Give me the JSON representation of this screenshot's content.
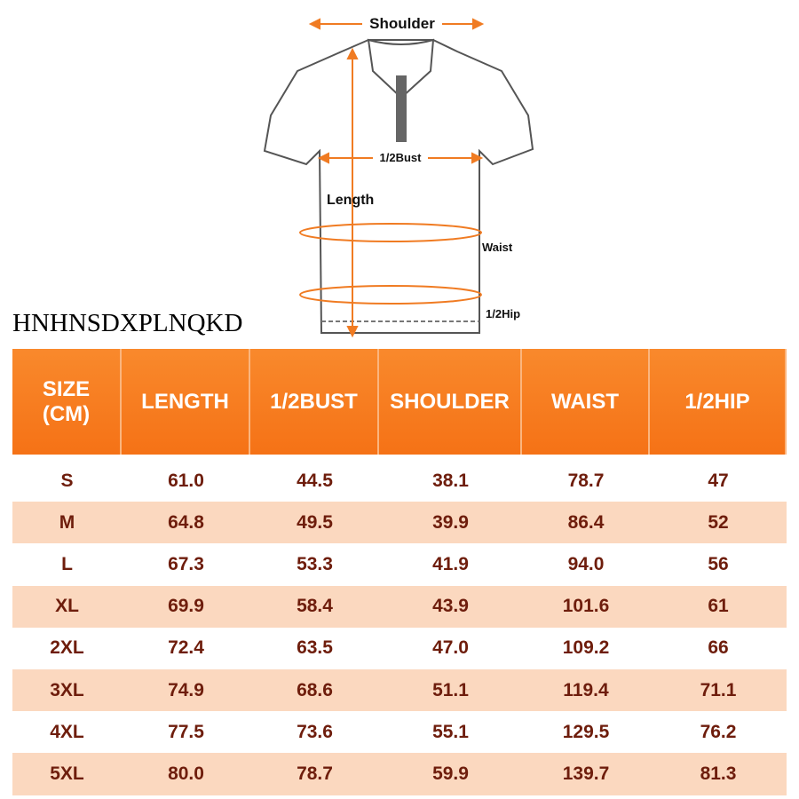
{
  "diagram": {
    "shoulder": "Shoulder",
    "bust": "1/2Bust",
    "length": "Length",
    "waist": "Waist",
    "hip": "1/2Hip"
  },
  "brand": "HNHNSDXPLNQKD",
  "table": {
    "header": [
      "SIZE (CM)",
      "LENGTH",
      "1/2BUST",
      "SHOULDER",
      "WAIST",
      "1/2HIP"
    ],
    "rows": [
      [
        "S",
        "61.0",
        "44.5",
        "38.1",
        "78.7",
        "47"
      ],
      [
        "M",
        "64.8",
        "49.5",
        "39.9",
        "86.4",
        "52"
      ],
      [
        "L",
        "67.3",
        "53.3",
        "41.9",
        "94.0",
        "56"
      ],
      [
        "XL",
        "69.9",
        "58.4",
        "43.9",
        "101.6",
        "61"
      ],
      [
        "2XL",
        "72.4",
        "63.5",
        "47.0",
        "109.2",
        "66"
      ],
      [
        "3XL",
        "74.9",
        "68.6",
        "51.1",
        "119.4",
        "71.1"
      ],
      [
        "4XL",
        "77.5",
        "73.6",
        "55.1",
        "129.5",
        "76.2"
      ],
      [
        "5XL",
        "80.0",
        "78.7",
        "59.9",
        "139.7",
        "81.3"
      ]
    ]
  }
}
